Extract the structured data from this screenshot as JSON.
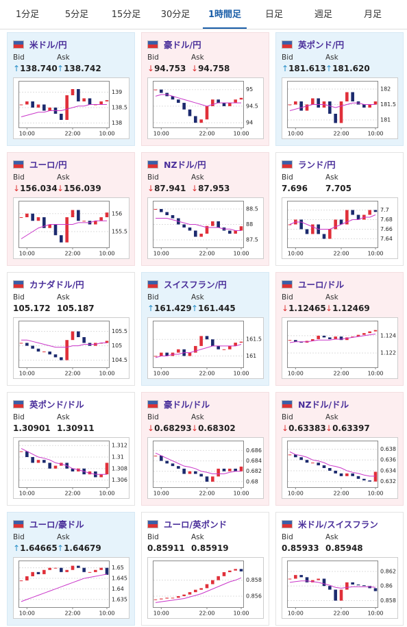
{
  "tabs": [
    "1分足",
    "5分足",
    "15分足",
    "30分足",
    "1時間足",
    "日足",
    "週足",
    "月足"
  ],
  "active_tab_index": 4,
  "bid_label": "Bid",
  "ask_label": "Ask",
  "cards": [
    {
      "title": "米ドル/円",
      "trend": "up",
      "bid": "138.740",
      "ask": "138.742",
      "chart": {
        "type": "candlestick",
        "closes": [
          138.6,
          138.7,
          138.5,
          138.6,
          138.4,
          138.5,
          138.3,
          138.1,
          138.9,
          139.1,
          138.7,
          138.8,
          138.6,
          138.6,
          138.7,
          138.74
        ],
        "ma": [
          138.2,
          138.25,
          138.3,
          138.35,
          138.35,
          138.4,
          138.4,
          138.4,
          138.45,
          138.5,
          138.55,
          138.55,
          138.6,
          138.6,
          138.6,
          138.6
        ],
        "ylim": [
          137.9,
          139.3
        ],
        "yticks": [
          139,
          138.5,
          138
        ],
        "xticks": [
          {
            "value": 1,
            "label": "10:00"
          },
          {
            "value": 9,
            "label": "22:00"
          },
          {
            "value": 15,
            "label": "10:00"
          }
        ]
      }
    },
    {
      "title": "豪ドル/円",
      "trend": "down",
      "bid": "94.753",
      "ask": "94.758",
      "chart": {
        "type": "candlestick",
        "closes": [
          95.0,
          94.9,
          94.8,
          94.7,
          94.6,
          94.4,
          94.2,
          94.0,
          94.1,
          94.5,
          94.7,
          94.6,
          94.5,
          94.6,
          94.7,
          94.75
        ],
        "ma": [
          94.8,
          94.85,
          94.85,
          94.8,
          94.75,
          94.7,
          94.65,
          94.6,
          94.55,
          94.5,
          94.55,
          94.6,
          94.6,
          94.6,
          94.6,
          94.6
        ],
        "ylim": [
          93.9,
          95.2
        ],
        "yticks": [
          95,
          94.5,
          94
        ],
        "xticks": [
          {
            "value": 1,
            "label": "10:00"
          },
          {
            "value": 9,
            "label": "22:00"
          },
          {
            "value": 15,
            "label": "10:00"
          }
        ]
      }
    },
    {
      "title": "英ポンド/円",
      "trend": "up",
      "bid": "181.613",
      "ask": "181.620",
      "chart": {
        "type": "candlestick",
        "closes": [
          181.5,
          181.6,
          181.3,
          181.5,
          181.7,
          181.4,
          181.6,
          181.2,
          180.9,
          181.6,
          181.9,
          181.6,
          181.5,
          181.4,
          181.5,
          181.6
        ],
        "ma": [
          181.3,
          181.35,
          181.4,
          181.45,
          181.5,
          181.5,
          181.5,
          181.45,
          181.4,
          181.45,
          181.5,
          181.55,
          181.55,
          181.5,
          181.5,
          181.5
        ],
        "ylim": [
          180.8,
          182.2
        ],
        "yticks": [
          182,
          181.5,
          181
        ],
        "xticks": [
          {
            "value": 1,
            "label": "10:00"
          },
          {
            "value": 9,
            "label": "22:00"
          },
          {
            "value": 15,
            "label": "10:00"
          }
        ]
      }
    },
    {
      "title": "ユーロ/円",
      "trend": "down",
      "bid": "156.034",
      "ask": "156.039",
      "chart": {
        "type": "candlestick",
        "closes": [
          155.9,
          156.0,
          155.8,
          155.9,
          155.6,
          155.7,
          155.4,
          155.2,
          155.9,
          156.1,
          155.8,
          155.8,
          155.7,
          155.8,
          155.9,
          156.03
        ],
        "ma": [
          155.3,
          155.4,
          155.5,
          155.6,
          155.65,
          155.7,
          155.7,
          155.7,
          155.7,
          155.7,
          155.75,
          155.75,
          155.75,
          155.8,
          155.8,
          155.8
        ],
        "ylim": [
          155.1,
          156.3
        ],
        "yticks": [
          156,
          155.5
        ],
        "xticks": [
          {
            "value": 1,
            "label": "10:00"
          },
          {
            "value": 9,
            "label": "22:00"
          },
          {
            "value": 15,
            "label": "10:00"
          }
        ]
      }
    },
    {
      "title": "NZドル/円",
      "trend": "down",
      "bid": "87.941",
      "ask": "87.953",
      "chart": {
        "type": "candlestick",
        "closes": [
          88.5,
          88.4,
          88.3,
          88.2,
          88.0,
          87.9,
          87.8,
          87.6,
          87.7,
          87.95,
          88.1,
          87.9,
          87.8,
          87.7,
          87.8,
          87.94
        ],
        "ma": [
          88.2,
          88.2,
          88.2,
          88.15,
          88.1,
          88.05,
          88.0,
          88.0,
          87.95,
          87.9,
          87.9,
          87.9,
          87.85,
          87.85,
          87.8,
          87.8
        ],
        "ylim": [
          87.3,
          88.7
        ],
        "yticks": [
          88.5,
          88,
          87.5
        ],
        "xticks": [
          {
            "value": 1,
            "label": "10:00"
          },
          {
            "value": 9,
            "label": "22:00"
          },
          {
            "value": 15,
            "label": "10:00"
          }
        ]
      }
    },
    {
      "title": "ランド/円",
      "trend": null,
      "bid": "7.696",
      "ask": "7.705",
      "chart": {
        "type": "candlestick",
        "closes": [
          7.67,
          7.68,
          7.66,
          7.65,
          7.67,
          7.65,
          7.64,
          7.66,
          7.68,
          7.67,
          7.7,
          7.69,
          7.68,
          7.69,
          7.7,
          7.696
        ],
        "ma": [
          7.67,
          7.675,
          7.675,
          7.67,
          7.665,
          7.66,
          7.66,
          7.66,
          7.665,
          7.67,
          7.675,
          7.68,
          7.68,
          7.685,
          7.685,
          7.69
        ],
        "ylim": [
          7.625,
          7.715
        ],
        "yticks": [
          7.7,
          7.68,
          7.66,
          7.64
        ],
        "xticks": [
          {
            "value": 1,
            "label": "10:00"
          },
          {
            "value": 9,
            "label": "22:00"
          },
          {
            "value": 15,
            "label": "10:00"
          }
        ]
      }
    },
    {
      "title": "カナダドル/円",
      "trend": null,
      "bid": "105.172",
      "ask": "105.187",
      "chart": {
        "type": "candlestick",
        "closes": [
          105.1,
          105.0,
          104.9,
          104.8,
          104.8,
          104.7,
          104.6,
          104.5,
          105.2,
          105.5,
          105.3,
          105.1,
          105.0,
          105.1,
          105.1,
          105.17
        ],
        "ma": [
          105.2,
          105.2,
          105.15,
          105.1,
          105.05,
          105.0,
          104.95,
          104.95,
          104.95,
          105.0,
          105.0,
          105.05,
          105.05,
          105.05,
          105.1,
          105.1
        ],
        "ylim": [
          104.3,
          105.8
        ],
        "yticks": [
          105.5,
          105,
          104.5
        ],
        "xticks": [
          {
            "value": 1,
            "label": "10:00"
          },
          {
            "value": 9,
            "label": "22:00"
          },
          {
            "value": 15,
            "label": "10:00"
          }
        ]
      }
    },
    {
      "title": "スイスフラン/円",
      "trend": "up",
      "bid": "161.429",
      "ask": "161.445",
      "chart": {
        "type": "candlestick",
        "closes": [
          161.0,
          161.1,
          161.0,
          161.1,
          161.2,
          161.0,
          161.1,
          161.3,
          161.6,
          161.5,
          161.3,
          161.2,
          161.2,
          161.3,
          161.4,
          161.43
        ],
        "ma": [
          160.95,
          161.0,
          161.0,
          161.05,
          161.05,
          161.1,
          161.1,
          161.15,
          161.2,
          161.25,
          161.3,
          161.3,
          161.3,
          161.3,
          161.3,
          161.35
        ],
        "ylim": [
          160.7,
          162.0
        ],
        "yticks": [
          161.5,
          161
        ],
        "xticks": [
          {
            "value": 1,
            "label": "10:00"
          },
          {
            "value": 9,
            "label": "22:00"
          },
          {
            "value": 15,
            "label": "10:00"
          }
        ]
      }
    },
    {
      "title": "ユーロ/ドル",
      "trend": "down",
      "bid": "1.12465",
      "ask": "1.12469",
      "chart": {
        "type": "candlestick",
        "closes": [
          1.1235,
          1.1233,
          1.1232,
          1.1234,
          1.1236,
          1.124,
          1.1238,
          1.1236,
          1.1239,
          1.1235,
          1.1238,
          1.1239,
          1.1241,
          1.1243,
          1.1245,
          1.12465
        ],
        "ma": [
          1.1232,
          1.1233,
          1.1233,
          1.1233,
          1.1234,
          1.1235,
          1.1235,
          1.1235,
          1.1236,
          1.1236,
          1.1237,
          1.1238,
          1.1239,
          1.124,
          1.1241,
          1.1242
        ],
        "ylim": [
          1.1205,
          1.1255
        ],
        "yticks": [
          1.124,
          1.122
        ],
        "xticks": [
          {
            "value": 1,
            "label": "10:00"
          },
          {
            "value": 9,
            "label": "22:00"
          },
          {
            "value": 15,
            "label": "10:00"
          }
        ]
      }
    },
    {
      "title": "英ポンド/ドル",
      "trend": null,
      "bid": "1.30901",
      "ask": "1.30911",
      "chart": {
        "type": "candlestick",
        "closes": [
          1.311,
          1.31,
          1.309,
          1.3095,
          1.309,
          1.308,
          1.3085,
          1.309,
          1.308,
          1.3075,
          1.308,
          1.307,
          1.3075,
          1.3065,
          1.307,
          1.309
        ],
        "ma": [
          1.3115,
          1.311,
          1.3105,
          1.31,
          1.3098,
          1.3095,
          1.309,
          1.3088,
          1.3085,
          1.308,
          1.3078,
          1.3075,
          1.3072,
          1.307,
          1.307,
          1.307
        ],
        "ylim": [
          1.305,
          1.3125
        ],
        "yticks": [
          1.312,
          1.31,
          1.308,
          1.306
        ],
        "xticks": [
          {
            "value": 1,
            "label": "10:00"
          },
          {
            "value": 9,
            "label": "22:00"
          },
          {
            "value": 15,
            "label": "10:00"
          }
        ]
      }
    },
    {
      "title": "豪ドル/ドル",
      "trend": "down",
      "bid": "0.68293",
      "ask": "0.68302",
      "chart": {
        "type": "candlestick",
        "closes": [
          0.685,
          0.684,
          0.6835,
          0.683,
          0.6825,
          0.6815,
          0.682,
          0.6815,
          0.681,
          0.68,
          0.681,
          0.6825,
          0.682,
          0.6825,
          0.682,
          0.6829
        ],
        "ma": [
          0.6855,
          0.685,
          0.6845,
          0.684,
          0.6835,
          0.683,
          0.6828,
          0.6825,
          0.682,
          0.6818,
          0.6815,
          0.6815,
          0.6815,
          0.6818,
          0.682,
          0.682
        ],
        "ylim": [
          0.6792,
          0.6875
        ],
        "yticks": [
          0.686,
          0.684,
          0.682,
          0.68
        ],
        "xticks": [
          {
            "value": 1,
            "label": "10:00"
          },
          {
            "value": 9,
            "label": "22:00"
          },
          {
            "value": 15,
            "label": "10:00"
          }
        ]
      }
    },
    {
      "title": "NZドル/ドル",
      "trend": "down",
      "bid": "0.63383",
      "ask": "0.63397",
      "chart": {
        "type": "candlestick",
        "closes": [
          0.637,
          0.6365,
          0.636,
          0.6355,
          0.6355,
          0.635,
          0.6345,
          0.634,
          0.6335,
          0.633,
          0.6335,
          0.633,
          0.6325,
          0.6322,
          0.632,
          0.6338
        ],
        "ma": [
          0.6375,
          0.637,
          0.6368,
          0.6365,
          0.636,
          0.6358,
          0.6355,
          0.635,
          0.6348,
          0.6345,
          0.634,
          0.6337,
          0.6335,
          0.6332,
          0.633,
          0.633
        ],
        "ylim": [
          0.6312,
          0.6392
        ],
        "yticks": [
          0.638,
          0.636,
          0.634,
          0.632
        ],
        "xticks": [
          {
            "value": 1,
            "label": "10:00"
          },
          {
            "value": 9,
            "label": "22:00"
          },
          {
            "value": 15,
            "label": "10:00"
          }
        ]
      }
    },
    {
      "title": "ユーロ/豪ドル",
      "trend": "up",
      "bid": "1.64665",
      "ask": "1.64679",
      "chart": {
        "type": "candlestick",
        "closes": [
          1.644,
          1.646,
          1.648,
          1.647,
          1.649,
          1.65,
          1.65,
          1.648,
          1.649,
          1.651,
          1.65,
          1.648,
          1.648,
          1.649,
          1.65,
          1.6467
        ],
        "ma": [
          1.634,
          1.635,
          1.636,
          1.637,
          1.638,
          1.639,
          1.64,
          1.641,
          1.642,
          1.643,
          1.644,
          1.645,
          1.6455,
          1.646,
          1.6465,
          1.647
        ],
        "ylim": [
          1.632,
          1.6525
        ],
        "yticks": [
          1.65,
          1.645,
          1.64,
          1.635
        ],
        "xticks": [
          {
            "value": 1,
            "label": "10:00"
          },
          {
            "value": 9,
            "label": "22:00"
          },
          {
            "value": 15,
            "label": "10:00"
          }
        ]
      }
    },
    {
      "title": "ユーロ/英ポンド",
      "trend": null,
      "bid": "0.85911",
      "ask": "0.85919",
      "chart": {
        "type": "candlestick",
        "closes": [
          0.8556,
          0.8557,
          0.8558,
          0.8558,
          0.856,
          0.8562,
          0.8565,
          0.8568,
          0.857,
          0.8575,
          0.858,
          0.8585,
          0.859,
          0.8592,
          0.8594,
          0.8591
        ],
        "ma": [
          0.8552,
          0.8553,
          0.8554,
          0.8555,
          0.8556,
          0.8557,
          0.8559,
          0.8561,
          0.8563,
          0.8566,
          0.8569,
          0.8572,
          0.8575,
          0.8578,
          0.858,
          0.8583
        ],
        "ylim": [
          0.8548,
          0.8602
        ],
        "yticks": [
          0.858,
          0.856
        ],
        "xticks": [
          {
            "value": 1,
            "label": "10:00"
          },
          {
            "value": 9,
            "label": "22:00"
          },
          {
            "value": 15,
            "label": "10:00"
          }
        ]
      }
    },
    {
      "title": "米ドル/スイスフラン",
      "trend": null,
      "bid": "0.85933",
      "ask": "0.85948",
      "chart": {
        "type": "candlestick",
        "closes": [
          0.861,
          0.8615,
          0.8612,
          0.8605,
          0.8608,
          0.861,
          0.86,
          0.8595,
          0.858,
          0.8595,
          0.8605,
          0.8602,
          0.8601,
          0.86,
          0.8597,
          0.8593
        ],
        "ma": [
          0.8605,
          0.8606,
          0.8607,
          0.8607,
          0.8606,
          0.8605,
          0.8603,
          0.8601,
          0.8598,
          0.8597,
          0.8598,
          0.8599,
          0.8599,
          0.8599,
          0.8599,
          0.8598
        ],
        "ylim": [
          0.8573,
          0.8632
        ],
        "yticks": [
          0.862,
          0.86,
          0.858
        ],
        "xticks": [
          {
            "value": 1,
            "label": "10:00"
          },
          {
            "value": 9,
            "label": "22:00"
          },
          {
            "value": 15,
            "label": "10:00"
          }
        ]
      }
    }
  ]
}
